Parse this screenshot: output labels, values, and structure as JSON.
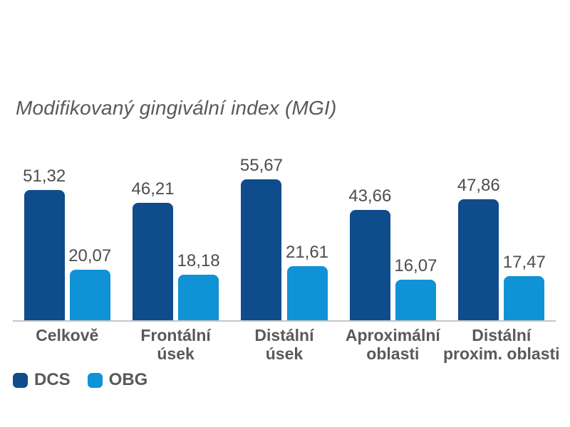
{
  "title": "Modifikovaný gingivální index (MGI)",
  "colors": {
    "dcs": "#0f4c8c",
    "obg": "#0f93d6",
    "axis_line": "#c6c6c6",
    "label_gray": "#595959",
    "value_gray": "#4d4d4d"
  },
  "legend": [
    {
      "name": "DCS",
      "color": "#0f4c8c"
    },
    {
      "name": "OBG",
      "color": "#0f93d6"
    }
  ],
  "chart_data": {
    "type": "bar",
    "title": "Modifikovaný gingivální index (MGI)",
    "categories": [
      "Celkově",
      "Frontální úsek",
      "Distální úsek",
      "Aproximální oblasti",
      "Distální proxim. oblasti"
    ],
    "categories_lines": [
      [
        "Celkově"
      ],
      [
        "Frontální",
        "úsek"
      ],
      [
        "Distální",
        "úsek"
      ],
      [
        "Aproximální",
        "oblasti"
      ],
      [
        "Distální",
        "proxim. oblasti"
      ]
    ],
    "series": [
      {
        "name": "DCS",
        "color": "#0f4c8c",
        "values": [
          51.32,
          46.21,
          55.67,
          43.66,
          47.86
        ],
        "value_labels": [
          "51,32",
          "46,21",
          "55,67",
          "43,66",
          "47,86"
        ]
      },
      {
        "name": "OBG",
        "color": "#0f93d6",
        "values": [
          20.07,
          18.18,
          21.61,
          16.07,
          17.47
        ],
        "value_labels": [
          "20,07",
          "18,18",
          "21,61",
          "16,07",
          "17,47"
        ]
      }
    ],
    "xlabel": "",
    "ylabel": "",
    "ylim": [
      0,
      60
    ],
    "grid": false,
    "y_axis_visible": false,
    "value_label_decimal": "comma",
    "legend_position": "bottom-left"
  }
}
